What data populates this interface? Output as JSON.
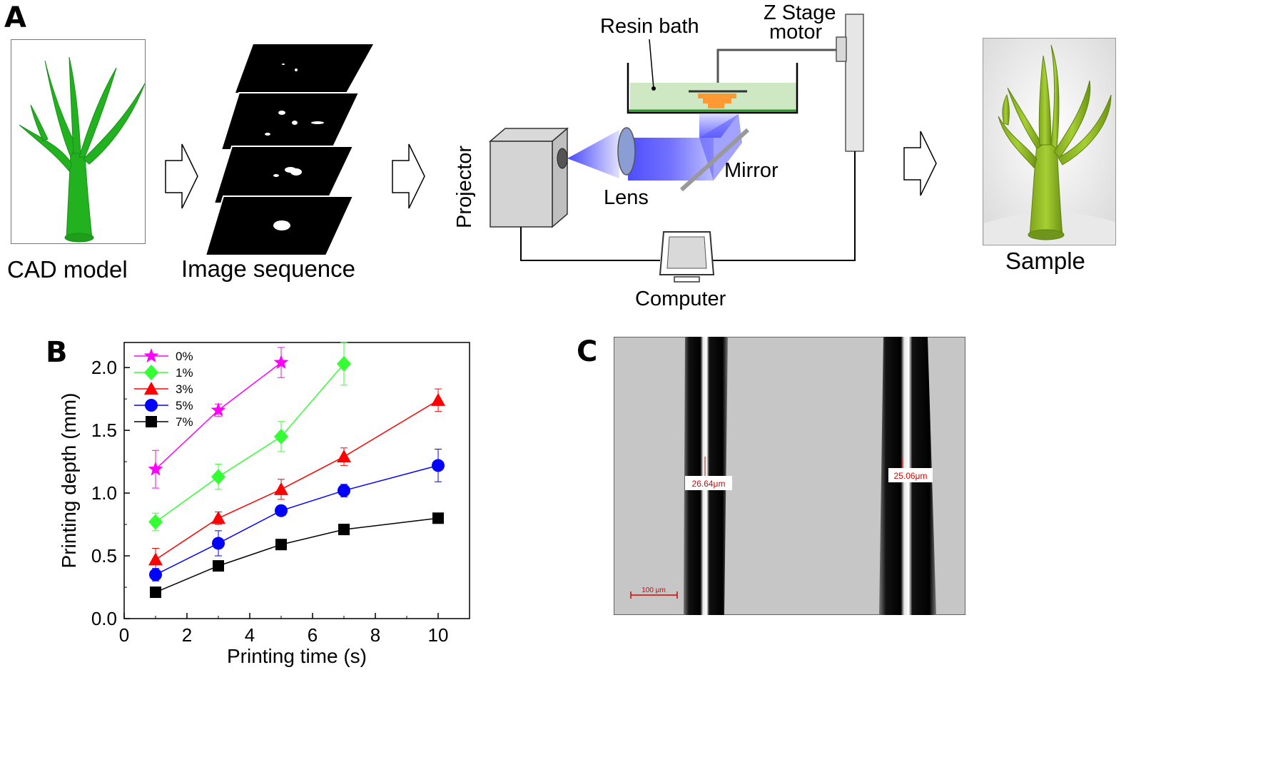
{
  "panel_a": {
    "letter": "A",
    "cad_label": "CAD model",
    "sequence_label": "Image sequence",
    "resin_label": "Resin bath",
    "zstage_label_1": "Z Stage",
    "zstage_label_2": "motor",
    "projector_label": "Projector",
    "lens_label": "Lens",
    "mirror_label": "Mirror",
    "computer_label": "Computer",
    "sample_label": "Sample"
  },
  "panel_b": {
    "letter": "B"
  },
  "panel_c": {
    "letter": "C",
    "measure_left": "26.64μm",
    "measure_right": "25.06μm",
    "scalebar_label": "100 μm"
  },
  "colors": {
    "plant_green": "#22b21f",
    "resin_green": "#cfe8c4",
    "beam_blue": "#3333ff",
    "part_orange": "#ff9933",
    "micro_gray": "#c6c6c6",
    "measure_red": "#e00000"
  },
  "chart_data": {
    "type": "line",
    "xlabel": "Printing time (s)",
    "ylabel": "Printing depth (mm)",
    "xlim": [
      0,
      11
    ],
    "ylim": [
      0,
      2.2
    ],
    "xticks": [
      0,
      2,
      4,
      6,
      8,
      10
    ],
    "yticks": [
      0.0,
      0.5,
      1.0,
      1.5,
      2.0
    ],
    "xtick_labels": [
      "0",
      "2",
      "4",
      "6",
      "8",
      "10"
    ],
    "ytick_labels": [
      "0.0",
      "0.5",
      "1.0",
      "1.5",
      "2.0"
    ],
    "legend_position": "top-left",
    "series": [
      {
        "name": "0%",
        "color": "#ff00ff",
        "marker": "star",
        "x": [
          1,
          3,
          5
        ],
        "y": [
          1.19,
          1.66,
          2.04
        ],
        "err": [
          0.15,
          0.05,
          0.12
        ]
      },
      {
        "name": "1%",
        "color": "#33ff33",
        "marker": "diamond",
        "x": [
          1,
          3,
          5,
          7
        ],
        "y": [
          0.77,
          1.13,
          1.45,
          2.03
        ],
        "err": [
          0.07,
          0.1,
          0.12,
          0.17
        ]
      },
      {
        "name": "3%",
        "color": "#ff0000",
        "marker": "triangle",
        "x": [
          1,
          3,
          5,
          7,
          10
        ],
        "y": [
          0.47,
          0.8,
          1.03,
          1.29,
          1.74
        ],
        "err": [
          0.09,
          0.05,
          0.08,
          0.07,
          0.09
        ]
      },
      {
        "name": "5%",
        "color": "#0000ff",
        "marker": "circle",
        "x": [
          1,
          3,
          5,
          7,
          10
        ],
        "y": [
          0.35,
          0.6,
          0.86,
          1.02,
          1.22
        ],
        "err": [
          0.05,
          0.1,
          0.04,
          0.05,
          0.13
        ]
      },
      {
        "name": "7%",
        "color": "#000000",
        "marker": "square",
        "x": [
          1,
          3,
          5,
          7,
          10
        ],
        "y": [
          0.21,
          0.42,
          0.59,
          0.71,
          0.8
        ],
        "err": [
          0.02,
          0.03,
          0.02,
          0.02,
          0.02
        ]
      }
    ]
  }
}
